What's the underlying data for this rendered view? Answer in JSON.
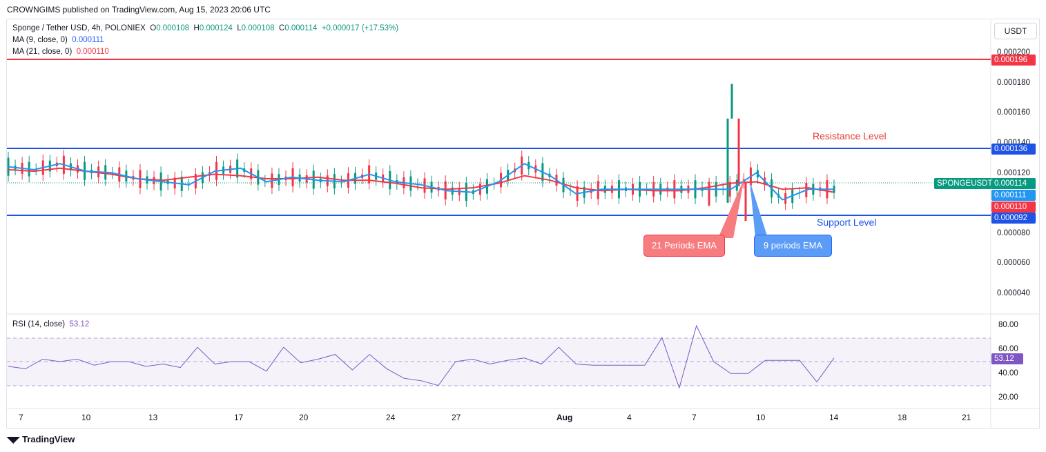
{
  "publisher": "CROWNGIMS published on TradingView.com, Aug 15, 2023 20:06 UTC",
  "legend": {
    "symbol": "Sponge / Tether USD, 4h, POLONIEX",
    "o_label": "O",
    "o_value": "0.000108",
    "h_label": "H",
    "h_value": "0.000124",
    "l_label": "L",
    "l_value": "0.000108",
    "c_label": "C",
    "c_value": "0.000114",
    "change": "+0.000017 (+17.53%)",
    "ma9_label": "MA (9, close, 0)",
    "ma9_value": "0.000111",
    "ma21_label": "MA (21, close, 0)",
    "ma21_value": "0.000110",
    "rsi_label": "RSI (14, close)",
    "rsi_value": "53.12"
  },
  "currency_button": "USDT",
  "price_axis": [
    "0.000200",
    "0.000180",
    "0.000160",
    "0.000140",
    "0.000120",
    "0.000080",
    "0.000060",
    "0.000040"
  ],
  "price_tags": {
    "resistance_red": "0.000196",
    "resistance": "0.000136",
    "last": "0.000114",
    "ma9": "0.000111",
    "ma21": "0.000110",
    "support": "0.000092",
    "symbol_badge": "SPONGEUSDT"
  },
  "rsi_axis": [
    "80.00",
    "60.00",
    "40.00",
    "20.00"
  ],
  "rsi_tag": "53.12",
  "date_axis": [
    "7",
    "10",
    "13",
    "17",
    "20",
    "24",
    "27",
    "Aug",
    "4",
    "7",
    "10",
    "14",
    "18",
    "21"
  ],
  "annotations": {
    "resistance": "Resistance Level",
    "support": "Support Level",
    "ema21": "21 Periods EMA",
    "ema9": "9 periods EMA"
  },
  "colors": {
    "up": "#089981",
    "down": "#f23645",
    "ma9": "#2196f3",
    "ma21": "#f23645",
    "level_blue": "#1e53e5",
    "rsi": "#7e57c2",
    "callout_red": "#f77c80",
    "callout_blue": "#5b9cf6"
  },
  "chart_data": {
    "type": "candlestick",
    "title": "Sponge / Tether USD, 4h, POLONIEX",
    "x_ticks": [
      "7",
      "10",
      "13",
      "17",
      "20",
      "24",
      "27",
      "Aug",
      "4",
      "7",
      "10",
      "14",
      "18",
      "21"
    ],
    "y_ticks": [
      0.0002,
      0.00018,
      0.00016,
      0.00014,
      0.00012,
      8e-05,
      6e-05,
      4e-05
    ],
    "levels": {
      "resistance_red": 0.000196,
      "resistance": 0.000136,
      "support": 9.2e-05
    },
    "ma9": [
      0.000128,
      0.000126,
      0.00013,
      0.000125,
      0.000124,
      0.00012,
      0.000118,
      0.000116,
      0.000125,
      0.000127,
      0.000118,
      0.000121,
      0.000119,
      0.000118,
      0.000123,
      0.000118,
      0.000116,
      0.000112,
      0.000111,
      0.000118,
      0.00013,
      0.000122,
      0.00011,
      0.000113,
      0.000113,
      0.000113,
      0.000113,
      0.000113,
      0.000113,
      0.000124,
      0.000106,
      0.000113,
      0.000113
    ],
    "ma21": [
      0.000126,
      0.000125,
      0.000127,
      0.000125,
      0.000123,
      0.00012,
      0.000119,
      0.000121,
      0.000123,
      0.000122,
      0.00012,
      0.00012,
      0.000121,
      0.000119,
      0.000119,
      0.000117,
      0.000114,
      0.000113,
      0.000114,
      0.000117,
      0.000122,
      0.000119,
      0.000114,
      0.000112,
      0.000113,
      0.000112,
      0.000112,
      0.000114,
      0.000117,
      0.000118,
      0.000113,
      0.000114,
      0.000111
    ],
    "rsi": [
      46,
      44,
      52,
      50,
      52,
      47,
      50,
      50,
      46,
      48,
      45,
      62,
      48,
      50,
      50,
      42,
      62,
      49,
      52,
      56,
      43,
      56,
      44,
      36,
      34,
      30,
      50,
      52,
      48,
      51,
      53,
      48,
      62,
      48,
      47,
      47,
      47,
      47,
      70,
      28,
      80,
      50,
      40,
      40,
      51,
      51,
      51,
      33,
      53
    ],
    "rsi_range": [
      20,
      80
    ]
  }
}
